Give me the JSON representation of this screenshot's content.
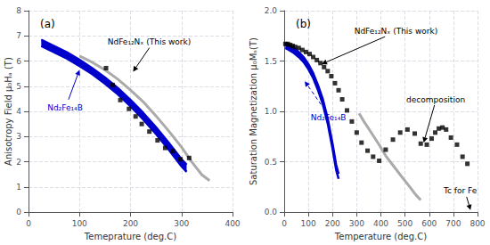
{
  "chart_data": [
    {
      "type": "line",
      "title": "(a)",
      "xlabel": "Temeprature (deg.C)",
      "ylabel": "Anisotropy Field μ₀Hₐ (T)",
      "xlim": [
        0,
        400
      ],
      "ylim": [
        0,
        8
      ],
      "xticks": [
        0,
        100,
        200,
        300,
        400
      ],
      "yticks": [
        0,
        1,
        2,
        3,
        4,
        5,
        6,
        7,
        8
      ],
      "grid": true,
      "series": [
        {
          "type": "band",
          "color": "#0000cc",
          "x": [
            25,
            50,
            75,
            100,
            125,
            150,
            175,
            200,
            225,
            250,
            275,
            300,
            310
          ],
          "values": [
            6.85,
            6.6,
            6.35,
            6.05,
            5.72,
            5.35,
            4.93,
            4.46,
            3.94,
            3.37,
            2.75,
            2.1,
            1.88
          ],
          "lower": [
            6.6,
            6.35,
            6.1,
            5.8,
            5.48,
            5.1,
            4.68,
            4.2,
            3.68,
            3.1,
            2.48,
            1.82,
            1.6
          ]
        },
        {
          "type": "line",
          "color": "#aaaaaa",
          "x": [
            100,
            125,
            150,
            175,
            200,
            225,
            250,
            275,
            300,
            320,
            340,
            355
          ],
          "values": [
            6.2,
            5.95,
            5.65,
            5.28,
            4.85,
            4.38,
            3.82,
            3.22,
            2.58,
            2.0,
            1.48,
            1.25
          ]
        },
        {
          "type": "scatter",
          "color": "#000000",
          "marker": "square",
          "x": [
            152,
            165,
            180,
            197,
            210,
            222,
            237,
            253,
            268,
            283,
            298,
            315
          ],
          "values": [
            5.72,
            5.05,
            4.45,
            4.1,
            3.8,
            3.5,
            3.2,
            2.85,
            2.55,
            2.42,
            2.1,
            2.15
          ]
        }
      ],
      "annotations": [
        {
          "text": "NdFe₁₂Nₓ (This work)",
          "xy": [
            205,
            5.58
          ],
          "xytext": [
            155,
            6.6
          ],
          "color": "#000000"
        },
        {
          "text": "Nd₂Fe₁₄B",
          "xy": [
            100,
            5.65
          ],
          "xytext": [
            37,
            4.0
          ],
          "color": "#0000cc"
        }
      ]
    },
    {
      "type": "line",
      "title": "(b)",
      "xlabel": "Temperature (deg.C)",
      "ylabel": "Saturation Magnetization μ₀Mₛ(T)",
      "xlim": [
        0,
        800
      ],
      "ylim": [
        0,
        2.0
      ],
      "xticks": [
        0,
        100,
        200,
        300,
        400,
        500,
        600,
        700,
        800
      ],
      "yticks": [
        {
          "value": 0.0,
          "label": "0.0"
        },
        0.5,
        {
          "value": 1.0,
          "label": "1.0"
        },
        1.5,
        {
          "value": 2.0,
          "label": "2.0"
        }
      ],
      "grid": true,
      "series": [
        {
          "type": "band",
          "color": "#0000cc",
          "x": [
            5,
            20,
            40,
            60,
            80,
            100,
            120,
            140,
            160,
            180,
            200,
            215,
            225
          ],
          "values": [
            1.68,
            1.66,
            1.63,
            1.59,
            1.54,
            1.47,
            1.38,
            1.26,
            1.12,
            0.93,
            0.68,
            0.47,
            0.38
          ],
          "lower": [
            1.63,
            1.61,
            1.58,
            1.54,
            1.49,
            1.42,
            1.33,
            1.21,
            1.07,
            0.88,
            0.63,
            0.42,
            0.33
          ]
        },
        {
          "type": "line",
          "color": "#aaaaaa",
          "x": [
            310,
            330,
            360,
            390,
            420,
            455,
            490,
            520,
            545,
            565
          ],
          "values": [
            0.98,
            0.9,
            0.79,
            0.68,
            0.56,
            0.45,
            0.34,
            0.25,
            0.17,
            0.12
          ]
        },
        {
          "type": "scatter",
          "color": "#000000",
          "marker": "square",
          "x": [
            5,
            15,
            25,
            35,
            45,
            60,
            75,
            90,
            105,
            120,
            135,
            150,
            165,
            180,
            195,
            210,
            225,
            240,
            260,
            280,
            300,
            320,
            345,
            368,
            393,
            420,
            450,
            480,
            510,
            540,
            565,
            590,
            610,
            625,
            640,
            655,
            670,
            690,
            715,
            738,
            758
          ],
          "values": [
            1.67,
            1.67,
            1.66,
            1.65,
            1.64,
            1.63,
            1.61,
            1.59,
            1.57,
            1.54,
            1.51,
            1.48,
            1.44,
            1.4,
            1.35,
            1.28,
            1.21,
            1.12,
            1.01,
            0.9,
            0.79,
            0.69,
            0.61,
            0.55,
            0.51,
            0.62,
            0.72,
            0.79,
            0.82,
            0.78,
            0.68,
            0.67,
            0.73,
            0.79,
            0.83,
            0.84,
            0.82,
            0.74,
            0.67,
            0.55,
            0.48
          ]
        }
      ],
      "annotations": [
        {
          "text": "NdFe₁₂Nₓ (This work)",
          "xy": [
            155,
            1.47
          ],
          "xytext": [
            290,
            1.76
          ],
          "color": "#000000"
        },
        {
          "text": "Nd₂Fe₁₄B",
          "xy": [
            85,
            1.3
          ],
          "xytext": [
            110,
            0.9
          ],
          "color": "#0000cc",
          "line_style": "dashed"
        },
        {
          "text": "decomposition",
          "xy": [
            577,
            0.69
          ],
          "xytext": [
            505,
            1.08
          ],
          "color": "#000000"
        },
        {
          "text": "Tc for Fe",
          "xy": [
            771,
            0.02
          ],
          "xytext": [
            660,
            0.17
          ],
          "color": "#000000"
        }
      ]
    }
  ]
}
